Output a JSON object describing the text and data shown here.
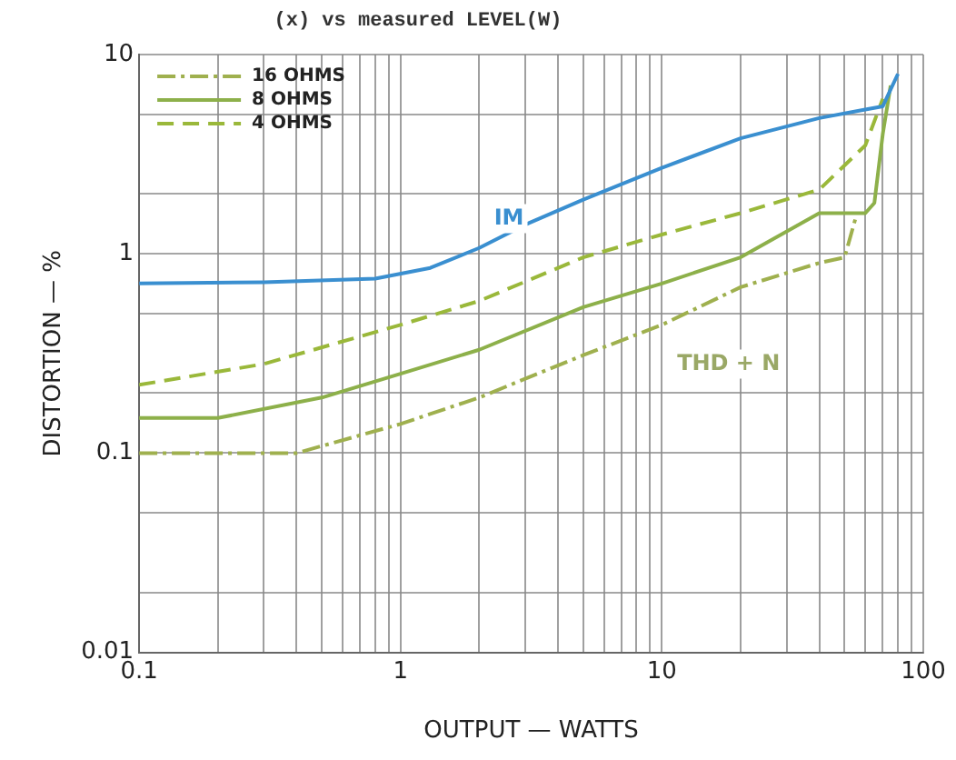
{
  "chart_data": {
    "type": "line",
    "xlabel": "OUTPUT — WATTS",
    "ylabel": "DISTORTION — %",
    "log": "xy",
    "grid": true,
    "legend": "top left",
    "marker": "none",
    "xlim": [
      0.1,
      100
    ],
    "ylim": [
      0.01,
      10
    ],
    "xticks": [
      0.1,
      {
        "value": 0.2,
        "label": null
      },
      {
        "value": 0.3,
        "label": null
      },
      {
        "value": 0.4,
        "label": null
      },
      {
        "value": 0.5,
        "label": null
      },
      {
        "value": 0.6,
        "label": null
      },
      {
        "value": 0.7,
        "label": null
      },
      {
        "value": 0.8,
        "label": null
      },
      {
        "value": 0.9,
        "label": null
      },
      1,
      {
        "value": 2,
        "label": null
      },
      {
        "value": 3,
        "label": null
      },
      {
        "value": 4,
        "label": null
      },
      {
        "value": 5,
        "label": null
      },
      {
        "value": 6,
        "label": null
      },
      {
        "value": 7,
        "label": null
      },
      {
        "value": 8,
        "label": null
      },
      {
        "value": 9,
        "label": null
      },
      10,
      {
        "value": 20,
        "label": null
      },
      {
        "value": 30,
        "label": null
      },
      {
        "value": 40,
        "label": null
      },
      {
        "value": 50,
        "label": null
      },
      {
        "value": 60,
        "label": null
      },
      {
        "value": 70,
        "label": null
      },
      {
        "value": 80,
        "label": null
      },
      {
        "value": 90,
        "label": null
      },
      100
    ],
    "yticks": [
      {
        "value": 0.01,
        "label": "0.01"
      },
      {
        "value": 0.02,
        "label": null
      },
      {
        "value": 0.05,
        "label": null
      },
      0.1,
      {
        "value": 0.2,
        "label": null
      },
      {
        "value": 0.5,
        "label": null
      },
      1,
      {
        "value": 2,
        "label": null
      },
      {
        "value": 5,
        "label": null
      },
      10
    ],
    "annotations": [
      "(x) vs measured LEVEL(W)",
      "IM",
      "THD + N"
    ],
    "series": [
      {
        "color": "#3a8fd0",
        "line_style": "solid",
        "x": [
          0.1,
          0.3,
          0.8,
          1.3,
          2,
          3,
          5,
          10,
          20,
          40,
          60,
          70,
          80
        ],
        "values": [
          0.71,
          0.72,
          0.75,
          0.85,
          1.07,
          1.4,
          1.87,
          2.7,
          3.8,
          4.8,
          5.3,
          5.5,
          8
        ]
      },
      {
        "name": "16 OHMS",
        "color": "#9fb04e",
        "line_style": "dotted",
        "x": [
          0.1,
          0.2,
          0.4,
          1,
          2,
          5,
          10,
          20,
          40,
          50,
          55
        ],
        "values": [
          0.1,
          0.1,
          0.1,
          0.14,
          0.19,
          0.31,
          0.44,
          0.68,
          0.9,
          0.96,
          1.5
        ]
      },
      {
        "name": "8 OHMS",
        "color": "#8db04a",
        "line_style": "solid",
        "x": [
          0.1,
          0.2,
          0.5,
          1,
          2,
          5,
          10,
          20,
          40,
          60,
          65,
          70,
          75
        ],
        "values": [
          0.15,
          0.15,
          0.19,
          0.25,
          0.33,
          0.54,
          0.71,
          0.96,
          1.6,
          1.6,
          1.8,
          4,
          7
        ]
      },
      {
        "name": "4 OHMS",
        "color": "#9ab83a",
        "line_style": "dashed",
        "x": [
          0.1,
          0.3,
          1,
          2,
          5,
          10,
          20,
          40,
          60,
          70
        ],
        "values": [
          0.22,
          0.28,
          0.44,
          0.58,
          0.96,
          1.25,
          1.6,
          2.1,
          3.5,
          6
        ]
      }
    ]
  }
}
